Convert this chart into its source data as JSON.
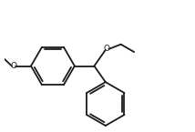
{
  "bg_color": "#ffffff",
  "line_color": "#1a1a1a",
  "lw": 1.3,
  "fig_width": 2.14,
  "fig_height": 1.45,
  "dpi": 100,
  "xlim": [
    -1.0,
    7.5
  ],
  "ylim": [
    -3.5,
    2.5
  ]
}
